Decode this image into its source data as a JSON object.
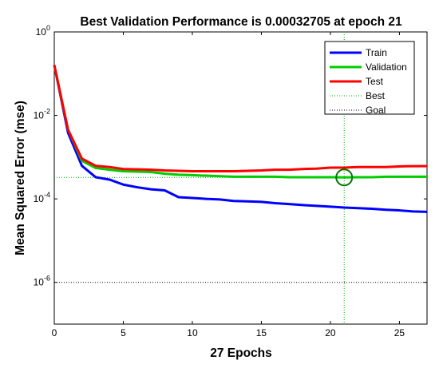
{
  "chart_data": {
    "type": "line",
    "title": "Best Validation Performance is 0.00032705 at epoch 21",
    "xlabel": "27 Epochs",
    "ylabel": "Mean Squared Error  (mse)",
    "xlim": [
      0,
      27
    ],
    "ylim": [
      1e-07,
      1
    ],
    "yscale": "log",
    "xticks": [
      0,
      5,
      10,
      15,
      20,
      25
    ],
    "yticks": [
      {
        "base": "10",
        "exp": "0",
        "value": 1
      },
      {
        "base": "10",
        "exp": "-2",
        "value": 0.01
      },
      {
        "base": "10",
        "exp": "-4",
        "value": 0.0001
      },
      {
        "base": "10",
        "exp": "-6",
        "value": 1e-06
      }
    ],
    "x": [
      0,
      1,
      2,
      3,
      4,
      5,
      6,
      7,
      8,
      9,
      10,
      11,
      12,
      13,
      14,
      15,
      16,
      17,
      18,
      19,
      20,
      21,
      22,
      23,
      24,
      25,
      26,
      27
    ],
    "series": [
      {
        "name": "Train",
        "color": "#0000ff",
        "values": [
          0.16,
          0.0038,
          0.00062,
          0.00033,
          0.00029,
          0.00022,
          0.00019,
          0.00017,
          0.00016,
          0.00011,
          0.000105,
          0.0001,
          9.7e-05,
          8.9e-05,
          8.7e-05,
          8.5e-05,
          7.9e-05,
          7.5e-05,
          7.1e-05,
          6.8e-05,
          6.5e-05,
          6.2e-05,
          6e-05,
          5.8e-05,
          5.5e-05,
          5.3e-05,
          5e-05,
          4.9e-05
        ]
      },
      {
        "name": "Validation",
        "color": "#00cc00",
        "values": [
          0.16,
          0.0045,
          0.00082,
          0.00055,
          0.0005,
          0.00046,
          0.00045,
          0.00044,
          0.0004,
          0.00038,
          0.00037,
          0.00036,
          0.00035,
          0.00034,
          0.00034,
          0.00034,
          0.00034,
          0.00033,
          0.00033,
          0.00033,
          0.00033,
          0.00032705,
          0.00033,
          0.00033,
          0.00034,
          0.00034,
          0.00034,
          0.00034
        ]
      },
      {
        "name": "Test",
        "color": "#ff0000",
        "values": [
          0.16,
          0.0045,
          0.00092,
          0.00062,
          0.00058,
          0.00052,
          0.00051,
          0.0005,
          0.00048,
          0.00047,
          0.00046,
          0.00046,
          0.00046,
          0.00046,
          0.00047,
          0.00048,
          0.0005,
          0.0005,
          0.00052,
          0.00053,
          0.00056,
          0.00056,
          0.00058,
          0.00058,
          0.00058,
          0.0006,
          0.00061,
          0.00061
        ]
      }
    ],
    "best": {
      "name": "Best",
      "epoch": 21,
      "value": 0.00032705,
      "color": "#00aa00"
    },
    "goal": {
      "name": "Goal",
      "value": 1e-06,
      "color": "#000000"
    },
    "legend": {
      "placement": "top-right",
      "entries": [
        {
          "label": "Train",
          "color": "#0000ff",
          "style": "solid"
        },
        {
          "label": "Validation",
          "color": "#00cc00",
          "style": "solid"
        },
        {
          "label": "Test",
          "color": "#ff0000",
          "style": "solid"
        },
        {
          "label": "Best",
          "color": "#00aa00",
          "style": "dotted"
        },
        {
          "label": "Goal",
          "color": "#000000",
          "style": "dotted"
        }
      ]
    }
  }
}
